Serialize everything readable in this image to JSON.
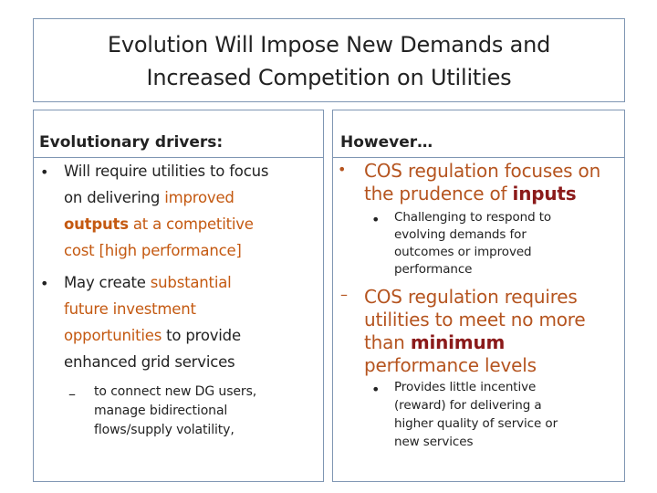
{
  "title": {
    "line1": "Evolution Will Impose New Demands and",
    "line2": "Increased Competition on Utilities"
  },
  "left": {
    "heading": "Evolutionary drivers:",
    "bullet_symbol": "•",
    "dash_symbol": "–",
    "b1": {
      "l1": "Will require utilities to focus",
      "l2a": "on delivering ",
      "l2b": "improved",
      "l3a": "outputs",
      "l3b": " at a competitive",
      "l4": "cost [high performance]"
    },
    "b2": {
      "l1a": "May create ",
      "l1b": "substantial",
      "l2": "future investment",
      "l3a": "opportunities",
      "l3b": " to provide",
      "l4": "enhanced grid services"
    },
    "sub1": {
      "l1": "to connect new DG users,",
      "l2": "manage bidirectional",
      "l3": "flows/supply volatility,"
    }
  },
  "right": {
    "heading": "However…",
    "bullet_symbol": "•",
    "dash_symbol": "–",
    "b1": {
      "l1": "COS regulation focuses on",
      "l2a": "the prudence of ",
      "l2b": "inputs"
    },
    "sub1": {
      "l1": "Challenging to respond to",
      "l2": "evolving demands for",
      "l3": "outcomes or improved",
      "l4": "performance"
    },
    "b2": {
      "l1": "COS regulation requires",
      "l2": "utilities to meet no more",
      "l3a": "than ",
      "l3b": "minimum",
      "l4": "performance levels"
    },
    "sub2": {
      "l1": "Provides little incentive",
      "l2": "(reward) for delivering a",
      "l3": "higher quality of service or",
      "l4": "new services"
    }
  },
  "colors": {
    "border": "#7f96b3",
    "accent_orange": "#c45911",
    "accent_maroon": "#8b1a1a"
  }
}
